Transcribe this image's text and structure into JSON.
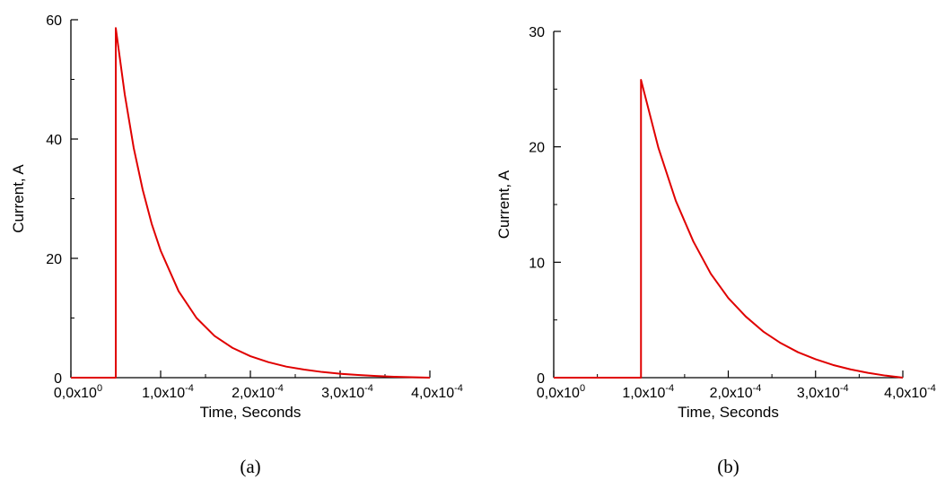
{
  "chart_data": [
    {
      "type": "line",
      "caption": "(a)",
      "xlabel": "Time, Seconds",
      "ylabel": "Current, A",
      "xlim": [
        0,
        0.0004
      ],
      "ylim": [
        0,
        60
      ],
      "xticks": [
        {
          "value": 0,
          "mantissa": "0,0x10",
          "exponent": "0"
        },
        {
          "value": 0.0001,
          "mantissa": "1,0x10",
          "exponent": "-4"
        },
        {
          "value": 0.0002,
          "mantissa": "2,0x10",
          "exponent": "-4"
        },
        {
          "value": 0.0003,
          "mantissa": "3,0x10",
          "exponent": "-4"
        },
        {
          "value": 0.0004,
          "mantissa": "4,0x10",
          "exponent": "-4"
        }
      ],
      "yticks": [
        "0",
        "20",
        "40",
        "60"
      ],
      "grid": false,
      "color": "#e00000",
      "series": [
        {
          "x": [
            0,
            5e-05,
            5e-05,
            6e-05,
            7e-05,
            8e-05,
            9e-05,
            0.0001,
            0.00012,
            0.00014,
            0.00016,
            0.00018,
            0.0002,
            0.00022,
            0.00024,
            0.00026,
            0.00028,
            0.0003,
            0.00032,
            0.00034,
            0.00036,
            0.00038,
            0.0004
          ],
          "y": [
            0,
            0,
            58.6,
            47.5,
            38.5,
            31.5,
            25.8,
            21.3,
            14.5,
            10.0,
            7.0,
            5.0,
            3.6,
            2.6,
            1.85,
            1.35,
            0.95,
            0.65,
            0.45,
            0.28,
            0.16,
            0.07,
            0
          ]
        }
      ]
    },
    {
      "type": "line",
      "caption": "(b)",
      "xlabel": "Time, Seconds",
      "ylabel": "Current, A",
      "xlim": [
        0,
        0.0004
      ],
      "ylim": [
        0,
        30
      ],
      "xticks": [
        {
          "value": 0,
          "mantissa": "0,0x10",
          "exponent": "0"
        },
        {
          "value": 0.0001,
          "mantissa": "1,0x10",
          "exponent": "-4"
        },
        {
          "value": 0.0002,
          "mantissa": "2,0x10",
          "exponent": "-4"
        },
        {
          "value": 0.0003,
          "mantissa": "3,0x10",
          "exponent": "-4"
        },
        {
          "value": 0.0004,
          "mantissa": "4,0x10",
          "exponent": "-4"
        }
      ],
      "yticks": [
        "0",
        "10",
        "20",
        "30"
      ],
      "grid": false,
      "color": "#e00000",
      "series": [
        {
          "x": [
            0,
            0.0001,
            0.0001,
            0.00012,
            0.00014,
            0.00016,
            0.00018,
            0.0002,
            0.00022,
            0.00024,
            0.00026,
            0.00028,
            0.0003,
            0.00032,
            0.00034,
            0.00036,
            0.00038,
            0.0004
          ],
          "y": [
            0,
            0,
            25.8,
            19.9,
            15.3,
            11.8,
            9.0,
            6.9,
            5.3,
            4.0,
            3.0,
            2.2,
            1.6,
            1.1,
            0.72,
            0.42,
            0.18,
            0
          ]
        }
      ]
    }
  ]
}
